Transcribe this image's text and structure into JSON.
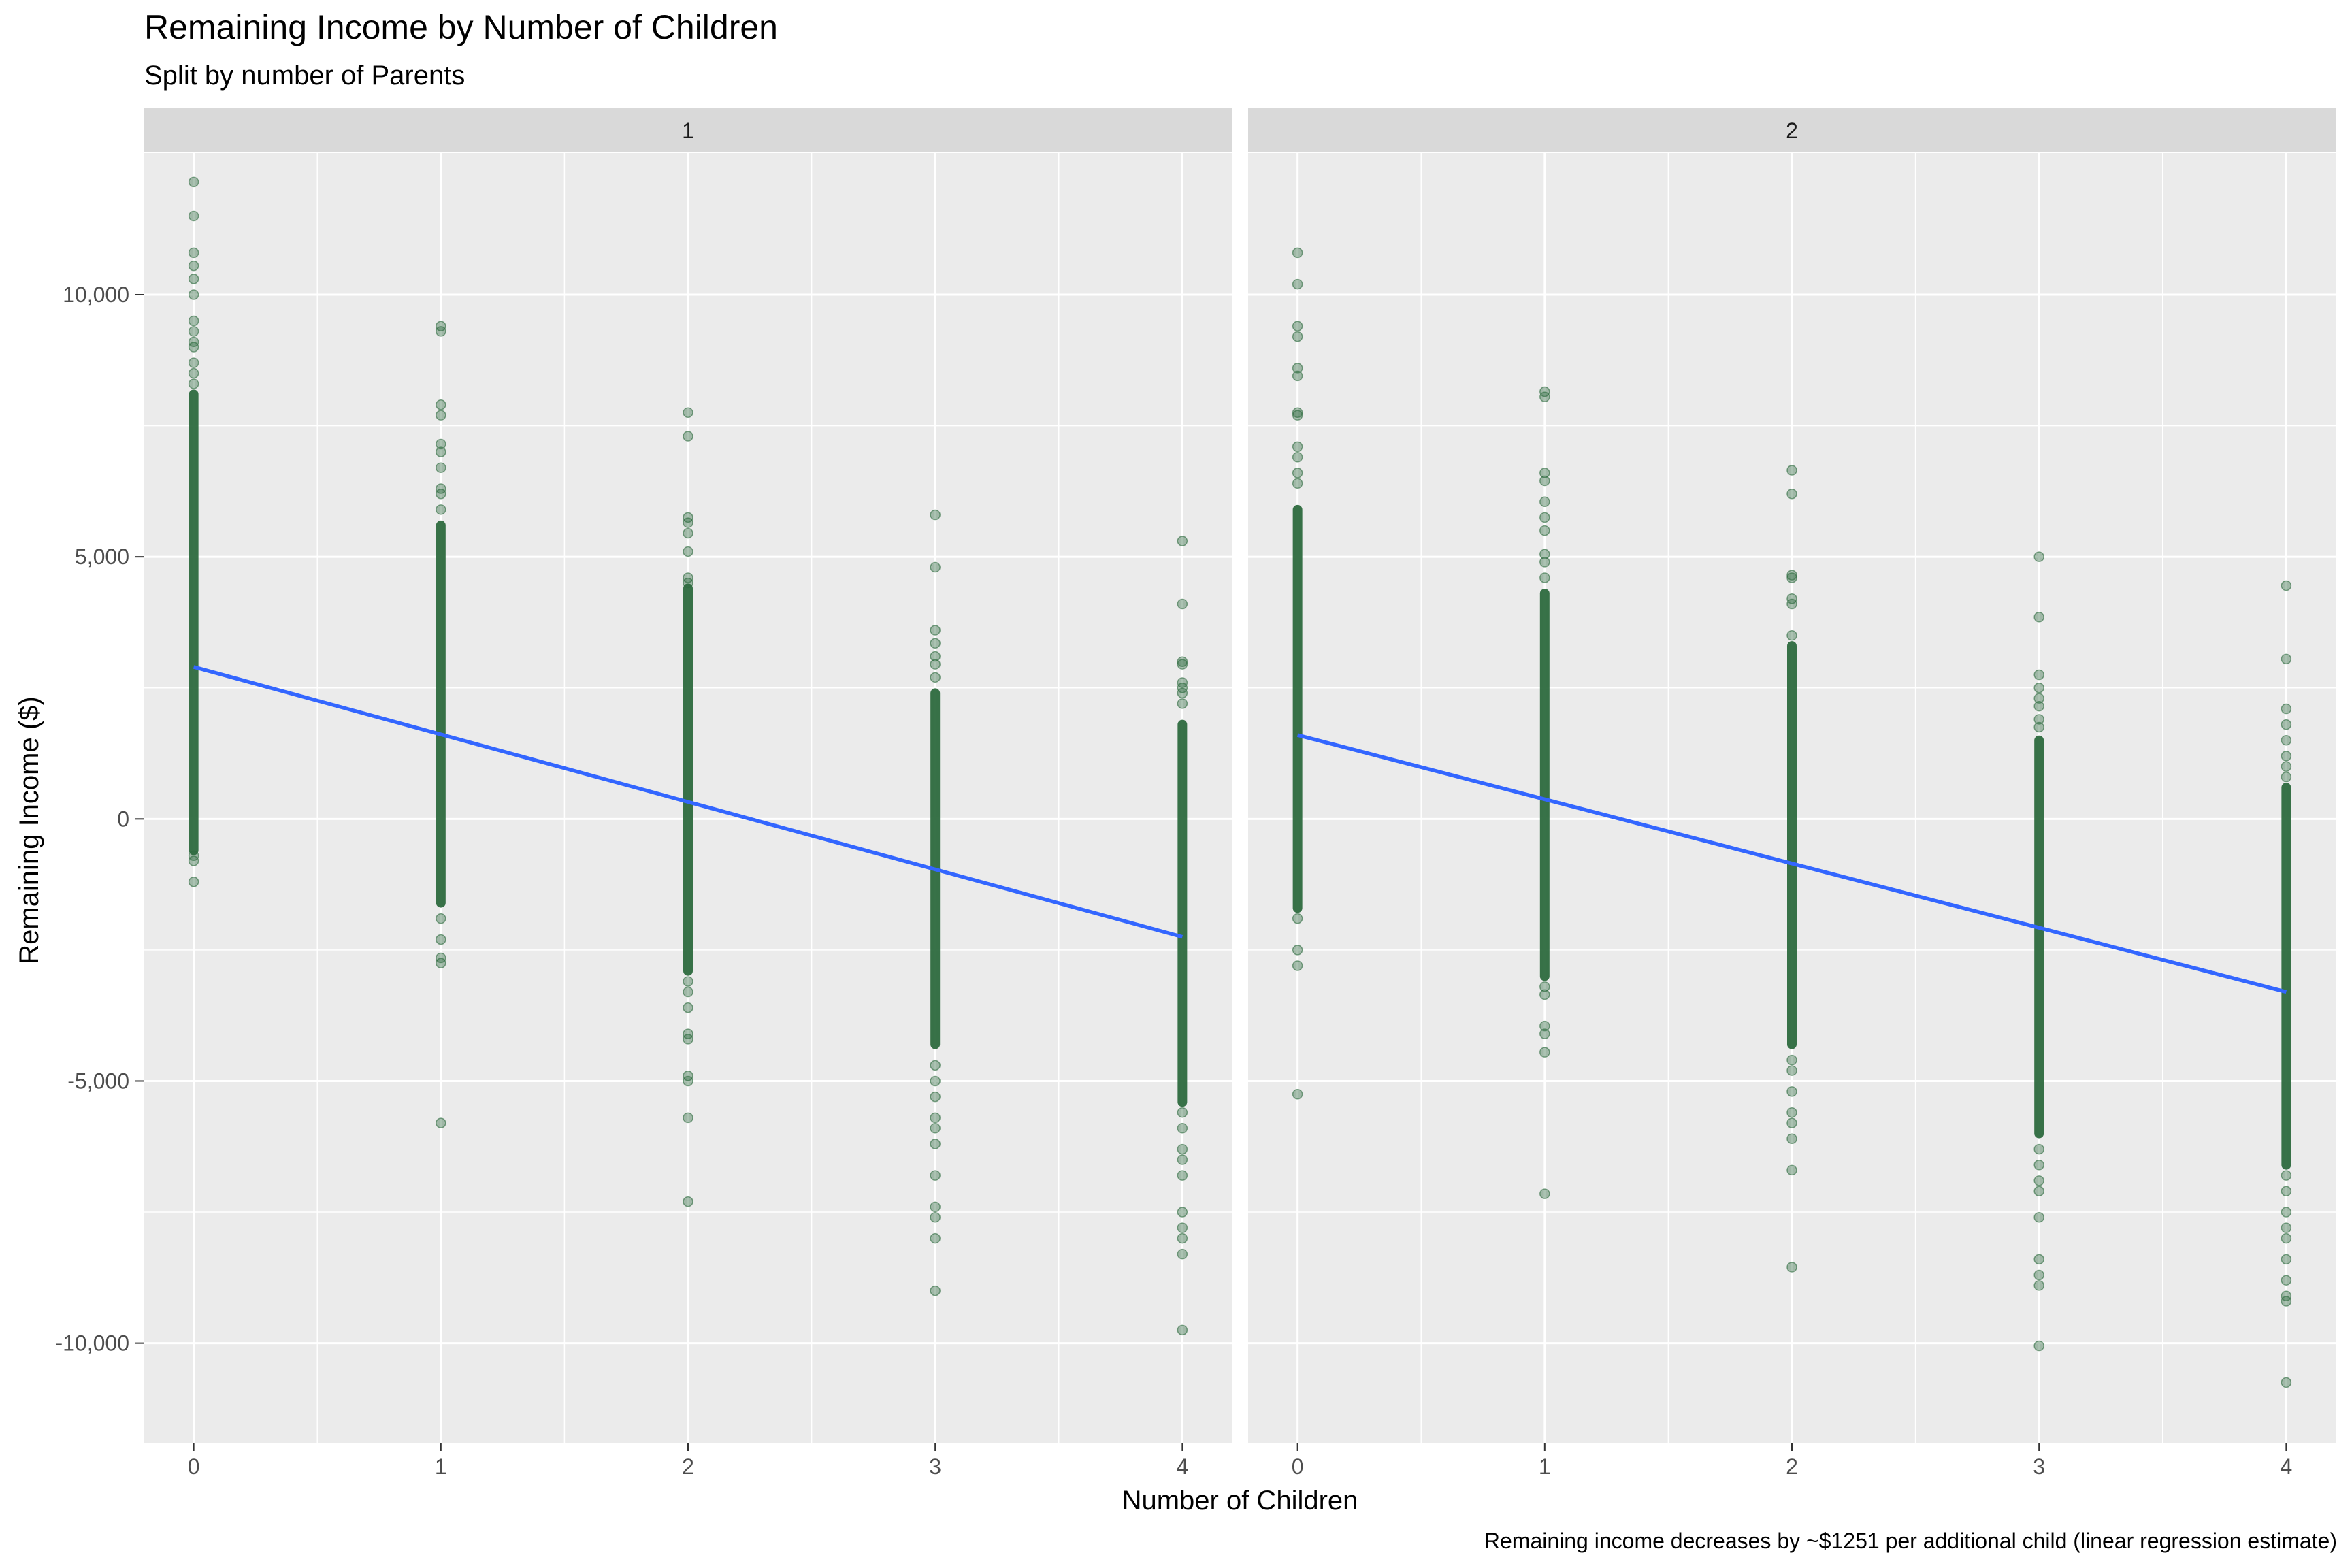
{
  "title": "Remaining Income by Number of Children",
  "subtitle": "Split by number of Parents",
  "caption": "Remaining income decreases by ~$1251 per additional child (linear regression estimate)",
  "colors": {
    "panel_background": "#ebebeb",
    "strip_background": "#d9d9d9",
    "gridline": "#ffffff",
    "point": "#2d6a3e",
    "trend_line": "#3366ff",
    "axis_text": "#4d4d4d"
  },
  "chart_data": {
    "type": "scatter",
    "facet_by": "number of Parents",
    "xlabel": "Number of Children",
    "ylabel": "Remaining Income ($)",
    "x_ticks": [
      0,
      1,
      2,
      3,
      4
    ],
    "y_ticks": [
      -10000,
      -5000,
      0,
      5000,
      10000
    ],
    "y_tick_labels": [
      "-10,000",
      "-5,000",
      "0",
      "5,000",
      "10,000"
    ],
    "x_lim": [
      -0.2,
      4.2
    ],
    "y_lim": [
      -11900,
      12700
    ],
    "grid": true,
    "point_alpha": 0.4,
    "panels": [
      {
        "label": "1",
        "trend": {
          "x": [
            0,
            4
          ],
          "y": [
            2900,
            -2250
          ]
        },
        "dense_ranges": [
          {
            "x": 0,
            "y": [
              -600,
              8100
            ]
          },
          {
            "x": 1,
            "y": [
              -1600,
              5600
            ]
          },
          {
            "x": 2,
            "y": [
              -2900,
              4400
            ]
          },
          {
            "x": 3,
            "y": [
              -4300,
              2400
            ]
          },
          {
            "x": 4,
            "y": [
              -5400,
              1800
            ]
          }
        ],
        "points": [
          {
            "x": 0,
            "y": 12150
          },
          {
            "x": 0,
            "y": 11500
          },
          {
            "x": 0,
            "y": 10800
          },
          {
            "x": 0,
            "y": 10550
          },
          {
            "x": 0,
            "y": 10300
          },
          {
            "x": 0,
            "y": 10000
          },
          {
            "x": 0,
            "y": 9500
          },
          {
            "x": 0,
            "y": 9300
          },
          {
            "x": 0,
            "y": 9100
          },
          {
            "x": 0,
            "y": 9000
          },
          {
            "x": 0,
            "y": 8700
          },
          {
            "x": 0,
            "y": 8500
          },
          {
            "x": 0,
            "y": 8300
          },
          {
            "x": 0,
            "y": -700
          },
          {
            "x": 0,
            "y": -800
          },
          {
            "x": 0,
            "y": -1200
          },
          {
            "x": 1,
            "y": 9400
          },
          {
            "x": 1,
            "y": 9300
          },
          {
            "x": 1,
            "y": 7900
          },
          {
            "x": 1,
            "y": 7700
          },
          {
            "x": 1,
            "y": 7150
          },
          {
            "x": 1,
            "y": 7000
          },
          {
            "x": 1,
            "y": 6700
          },
          {
            "x": 1,
            "y": 6300
          },
          {
            "x": 1,
            "y": 6200
          },
          {
            "x": 1,
            "y": 5900
          },
          {
            "x": 1,
            "y": -1900
          },
          {
            "x": 1,
            "y": -2300
          },
          {
            "x": 1,
            "y": -2650
          },
          {
            "x": 1,
            "y": -2750
          },
          {
            "x": 1,
            "y": -5800
          },
          {
            "x": 2,
            "y": 7750
          },
          {
            "x": 2,
            "y": 7300
          },
          {
            "x": 2,
            "y": 5750
          },
          {
            "x": 2,
            "y": 5650
          },
          {
            "x": 2,
            "y": 5450
          },
          {
            "x": 2,
            "y": 5100
          },
          {
            "x": 2,
            "y": 4600
          },
          {
            "x": 2,
            "y": 4500
          },
          {
            "x": 2,
            "y": -3100
          },
          {
            "x": 2,
            "y": -3300
          },
          {
            "x": 2,
            "y": -3600
          },
          {
            "x": 2,
            "y": -4100
          },
          {
            "x": 2,
            "y": -4200
          },
          {
            "x": 2,
            "y": -4900
          },
          {
            "x": 2,
            "y": -5000
          },
          {
            "x": 2,
            "y": -5700
          },
          {
            "x": 2,
            "y": -7300
          },
          {
            "x": 3,
            "y": 5800
          },
          {
            "x": 3,
            "y": 4800
          },
          {
            "x": 3,
            "y": 3600
          },
          {
            "x": 3,
            "y": 3350
          },
          {
            "x": 3,
            "y": 3100
          },
          {
            "x": 3,
            "y": 2950
          },
          {
            "x": 3,
            "y": 2700
          },
          {
            "x": 3,
            "y": -4700
          },
          {
            "x": 3,
            "y": -5000
          },
          {
            "x": 3,
            "y": -5300
          },
          {
            "x": 3,
            "y": -5700
          },
          {
            "x": 3,
            "y": -5900
          },
          {
            "x": 3,
            "y": -6200
          },
          {
            "x": 3,
            "y": -6800
          },
          {
            "x": 3,
            "y": -7400
          },
          {
            "x": 3,
            "y": -7600
          },
          {
            "x": 3,
            "y": -8000
          },
          {
            "x": 3,
            "y": -9000
          },
          {
            "x": 4,
            "y": 5300
          },
          {
            "x": 4,
            "y": 4100
          },
          {
            "x": 4,
            "y": 3000
          },
          {
            "x": 4,
            "y": 2950
          },
          {
            "x": 4,
            "y": 2600
          },
          {
            "x": 4,
            "y": 2500
          },
          {
            "x": 4,
            "y": 2400
          },
          {
            "x": 4,
            "y": 2200
          },
          {
            "x": 4,
            "y": -5600
          },
          {
            "x": 4,
            "y": -5900
          },
          {
            "x": 4,
            "y": -6300
          },
          {
            "x": 4,
            "y": -6500
          },
          {
            "x": 4,
            "y": -6800
          },
          {
            "x": 4,
            "y": -7500
          },
          {
            "x": 4,
            "y": -7800
          },
          {
            "x": 4,
            "y": -8000
          },
          {
            "x": 4,
            "y": -8300
          },
          {
            "x": 4,
            "y": -9750
          }
        ]
      },
      {
        "label": "2",
        "trend": {
          "x": [
            0,
            4
          ],
          "y": [
            1600,
            -3300
          ]
        },
        "dense_ranges": [
          {
            "x": 0,
            "y": [
              -1700,
              5900
            ]
          },
          {
            "x": 1,
            "y": [
              -3000,
              4300
            ]
          },
          {
            "x": 2,
            "y": [
              -4300,
              3300
            ]
          },
          {
            "x": 3,
            "y": [
              -6000,
              1500
            ]
          },
          {
            "x": 4,
            "y": [
              -6600,
              600
            ]
          }
        ],
        "points": [
          {
            "x": 0,
            "y": 10800
          },
          {
            "x": 0,
            "y": 10200
          },
          {
            "x": 0,
            "y": 9400
          },
          {
            "x": 0,
            "y": 9200
          },
          {
            "x": 0,
            "y": 8600
          },
          {
            "x": 0,
            "y": 8450
          },
          {
            "x": 0,
            "y": 7750
          },
          {
            "x": 0,
            "y": 7700
          },
          {
            "x": 0,
            "y": 7100
          },
          {
            "x": 0,
            "y": 6900
          },
          {
            "x": 0,
            "y": 6600
          },
          {
            "x": 0,
            "y": 6400
          },
          {
            "x": 0,
            "y": -1900
          },
          {
            "x": 0,
            "y": -2500
          },
          {
            "x": 0,
            "y": -2800
          },
          {
            "x": 0,
            "y": -5250
          },
          {
            "x": 1,
            "y": 8150
          },
          {
            "x": 1,
            "y": 8050
          },
          {
            "x": 1,
            "y": 6600
          },
          {
            "x": 1,
            "y": 6450
          },
          {
            "x": 1,
            "y": 6050
          },
          {
            "x": 1,
            "y": 5750
          },
          {
            "x": 1,
            "y": 5500
          },
          {
            "x": 1,
            "y": 5050
          },
          {
            "x": 1,
            "y": 4900
          },
          {
            "x": 1,
            "y": 4600
          },
          {
            "x": 1,
            "y": -3200
          },
          {
            "x": 1,
            "y": -3350
          },
          {
            "x": 1,
            "y": -3950
          },
          {
            "x": 1,
            "y": -4100
          },
          {
            "x": 1,
            "y": -4450
          },
          {
            "x": 1,
            "y": -7150
          },
          {
            "x": 2,
            "y": 6650
          },
          {
            "x": 2,
            "y": 6200
          },
          {
            "x": 2,
            "y": 4650
          },
          {
            "x": 2,
            "y": 4600
          },
          {
            "x": 2,
            "y": 4200
          },
          {
            "x": 2,
            "y": 4100
          },
          {
            "x": 2,
            "y": 3500
          },
          {
            "x": 2,
            "y": -4600
          },
          {
            "x": 2,
            "y": -4800
          },
          {
            "x": 2,
            "y": -5200
          },
          {
            "x": 2,
            "y": -5600
          },
          {
            "x": 2,
            "y": -5800
          },
          {
            "x": 2,
            "y": -6100
          },
          {
            "x": 2,
            "y": -6700
          },
          {
            "x": 2,
            "y": -8550
          },
          {
            "x": 3,
            "y": 5000
          },
          {
            "x": 3,
            "y": 3850
          },
          {
            "x": 3,
            "y": 2750
          },
          {
            "x": 3,
            "y": 2500
          },
          {
            "x": 3,
            "y": 2300
          },
          {
            "x": 3,
            "y": 2150
          },
          {
            "x": 3,
            "y": 1900
          },
          {
            "x": 3,
            "y": 1750
          },
          {
            "x": 3,
            "y": -6300
          },
          {
            "x": 3,
            "y": -6600
          },
          {
            "x": 3,
            "y": -6900
          },
          {
            "x": 3,
            "y": -7100
          },
          {
            "x": 3,
            "y": -7600
          },
          {
            "x": 3,
            "y": -8400
          },
          {
            "x": 3,
            "y": -8700
          },
          {
            "x": 3,
            "y": -8900
          },
          {
            "x": 3,
            "y": -10050
          },
          {
            "x": 4,
            "y": 4450
          },
          {
            "x": 4,
            "y": 3050
          },
          {
            "x": 4,
            "y": 2100
          },
          {
            "x": 4,
            "y": 1800
          },
          {
            "x": 4,
            "y": 1500
          },
          {
            "x": 4,
            "y": 1200
          },
          {
            "x": 4,
            "y": 1000
          },
          {
            "x": 4,
            "y": 800
          },
          {
            "x": 4,
            "y": -6800
          },
          {
            "x": 4,
            "y": -7100
          },
          {
            "x": 4,
            "y": -7500
          },
          {
            "x": 4,
            "y": -7800
          },
          {
            "x": 4,
            "y": -8000
          },
          {
            "x": 4,
            "y": -8400
          },
          {
            "x": 4,
            "y": -8800
          },
          {
            "x": 4,
            "y": -9100
          },
          {
            "x": 4,
            "y": -9200
          },
          {
            "x": 4,
            "y": -10750
          }
        ]
      }
    ]
  }
}
